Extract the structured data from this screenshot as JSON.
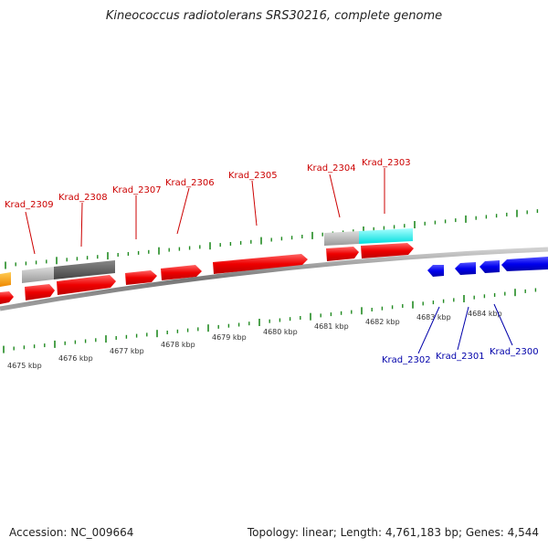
{
  "title": "Kineococcus radiotolerans SRS30216, complete genome",
  "footer": {
    "accession": "Accession: NC_009664",
    "summary": "Topology: linear; Length: 4,761,183 bp; Genes: 4,544"
  },
  "colors": {
    "forward_gene": "#ff0000",
    "reverse_gene": "#0000ff",
    "backbone": "#888888",
    "tick": "#228b22",
    "label_forward": "#cc0000",
    "label_reverse": "#0000aa",
    "highlight_cyan": "#00ffff",
    "highlight_gray": "#aaaaaa",
    "highlight_dark": "#555555",
    "orange": "#ff9900"
  },
  "kbp_labels": [
    "4675 kbp",
    "4676 kbp",
    "4677 kbp",
    "4678 kbp",
    "4679 kbp",
    "4680 kbp",
    "4681 kbp",
    "4682 kbp",
    "4683 kbp",
    "4684 kbp"
  ],
  "genes_forward": [
    "Krad_2309",
    "Krad_2308",
    "Krad_2307",
    "Krad_2306",
    "Krad_2305",
    "Krad_2304",
    "Krad_2303"
  ],
  "genes_reverse": [
    "Krad_2302",
    "Krad_2301",
    "Krad_2300"
  ]
}
